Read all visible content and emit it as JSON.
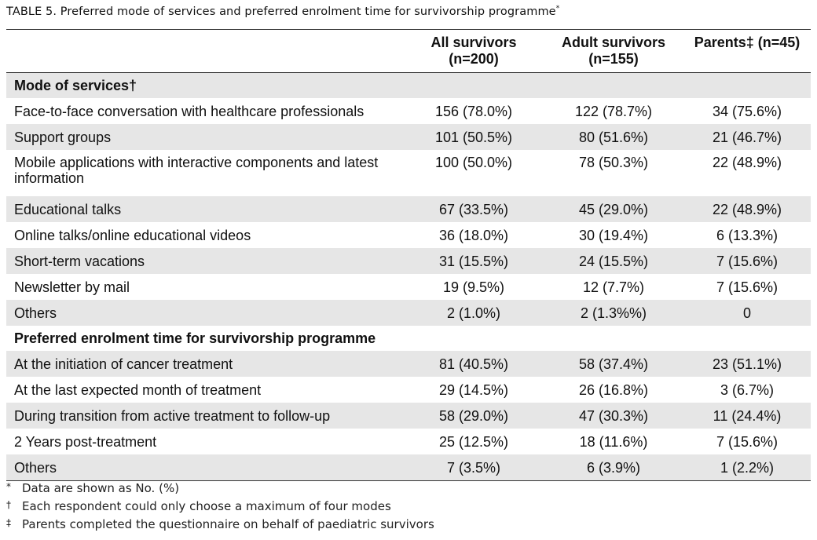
{
  "caption": {
    "title": "TABLE 5.  Preferred mode of services and preferred enrolment time for survivorship programme",
    "mark": "*"
  },
  "headers": [
    "",
    "All survivors\n(n=200)",
    "Adult survivors\n(n=155)",
    "Parents‡ (n=45)"
  ],
  "sections": [
    {
      "title": "Mode of services†",
      "rows": [
        {
          "label": "Face-to-face conversation with healthcare professionals",
          "all": "156 (78.0%)",
          "adult": "122 (78.7%)",
          "parents": "34 (75.6%)"
        },
        {
          "label": "Support groups",
          "all": "101 (50.5%)",
          "adult": "80 (51.6%)",
          "parents": "21 (46.7%)"
        },
        {
          "label": "Mobile applications with interactive components and latest information",
          "all": "100 (50.0%)",
          "adult": "78 (50.3%)",
          "parents": "22 (48.9%)"
        },
        {
          "label": "Educational talks",
          "all": "67 (33.5%)",
          "adult": "45 (29.0%)",
          "parents": "22 (48.9%)"
        },
        {
          "label": "Online talks/online educational videos",
          "all": "36 (18.0%)",
          "adult": "30 (19.4%)",
          "parents": "6 (13.3%)"
        },
        {
          "label": "Short-term vacations",
          "all": "31 (15.5%)",
          "adult": "24 (15.5%)",
          "parents": "7 (15.6%)"
        },
        {
          "label": "Newsletter by mail",
          "all": "19 (9.5%)",
          "adult": "12 (7.7%)",
          "parents": "7 (15.6%)"
        },
        {
          "label": "Others",
          "all": "2 (1.0%)",
          "adult": "2 (1.3%%)",
          "parents": "0"
        }
      ]
    },
    {
      "title": "Preferred enrolment time for survivorship programme",
      "rows": [
        {
          "label": "At the initiation of cancer treatment",
          "all": "81 (40.5%)",
          "adult": "58 (37.4%)",
          "parents": "23 (51.1%)"
        },
        {
          "label": "At the last expected month of treatment",
          "all": "29 (14.5%)",
          "adult": "26 (16.8%)",
          "parents": "3 (6.7%)"
        },
        {
          "label": "During transition from active treatment to follow-up",
          "all": "58 (29.0%)",
          "adult": "47 (30.3%)",
          "parents": "11 (24.4%)"
        },
        {
          "label": "2 Years post-treatment",
          "all": "25 (12.5%)",
          "adult": "18 (11.6%)",
          "parents": "7 (15.6%)"
        },
        {
          "label": "Others",
          "all": "7 (3.5%)",
          "adult": "6 (3.9%)",
          "parents": "1 (2.2%)"
        }
      ]
    }
  ],
  "footnotes": [
    {
      "mark": "*",
      "text": "Data are shown as No. (%)"
    },
    {
      "mark": "†",
      "text": "Each respondent could only choose a maximum of four modes"
    },
    {
      "mark": "‡",
      "text": "Parents completed the questionnaire on behalf of paediatric survivors"
    }
  ]
}
